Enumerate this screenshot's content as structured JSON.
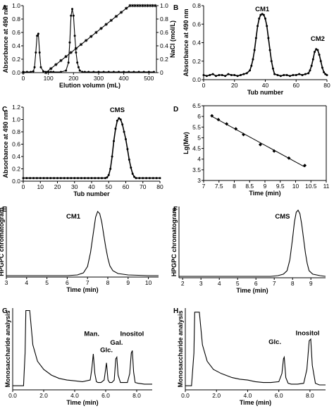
{
  "chart_data": [
    {
      "panel": "A",
      "type": "line",
      "xlabel": "Elution volumn (mL)",
      "ylabel": "Absorbance at 490 nm",
      "y2label": "NaCl (mol/L)",
      "xlim": [
        0,
        530
      ],
      "ylim": [
        0,
        1.0
      ],
      "y2lim": [
        0,
        1.0
      ],
      "xticks": [
        "0",
        "100",
        "200",
        "300",
        "400",
        "500"
      ],
      "yticks": [
        "0.0",
        "0.2",
        "0.4",
        "0.6",
        "0.8",
        "1.0"
      ],
      "y2ticks": [
        "0",
        "0.2",
        "0.4",
        "0.6",
        "0.8",
        "1.0"
      ],
      "series": [
        {
          "name": "",
          "axis": "left",
          "marker": "dot",
          "x": [
            0,
            15,
            30,
            40,
            45,
            50,
            55,
            60,
            65,
            70,
            80,
            90,
            100,
            110,
            120,
            150,
            170,
            180,
            185,
            190,
            195,
            200,
            205,
            210,
            215,
            220,
            225,
            235,
            245,
            260,
            280,
            300,
            320,
            340,
            360,
            380,
            400,
            420,
            440,
            460,
            480,
            500,
            520
          ],
          "y": [
            0.01,
            0.01,
            0.01,
            0.02,
            0.08,
            0.3,
            0.55,
            0.58,
            0.3,
            0.08,
            0.02,
            0.01,
            0.01,
            0.01,
            0.01,
            0.01,
            0.03,
            0.15,
            0.45,
            0.85,
            0.95,
            0.85,
            0.55,
            0.3,
            0.15,
            0.08,
            0.03,
            0.01,
            0.01,
            0.01,
            0.01,
            0.01,
            0.01,
            0.01,
            0.01,
            0.01,
            0.01,
            0.01,
            0.01,
            0.01,
            0.01,
            0.01,
            0.01
          ]
        },
        {
          "name": "",
          "axis": "right",
          "marker": "star",
          "x": [
            0,
            90,
            110,
            130,
            150,
            170,
            190,
            210,
            230,
            250,
            270,
            290,
            310,
            330,
            350,
            370,
            390,
            410,
            425,
            435,
            445,
            455,
            465,
            475,
            485,
            495,
            505,
            515,
            525
          ],
          "y": [
            0,
            0,
            0.06,
            0.12,
            0.18,
            0.24,
            0.3,
            0.36,
            0.42,
            0.48,
            0.54,
            0.6,
            0.66,
            0.72,
            0.78,
            0.84,
            0.9,
            0.96,
            1,
            1,
            1,
            1,
            1,
            1,
            1,
            1,
            1,
            1,
            1
          ]
        }
      ]
    },
    {
      "panel": "B",
      "type": "line",
      "xlabel": "Tub number",
      "ylabel": "Absorbance at 490 nm",
      "xlim": [
        0,
        80
      ],
      "ylim": [
        0,
        0.8
      ],
      "xticks": [
        "0",
        "20",
        "40",
        "60",
        "80"
      ],
      "yticks": [
        "0.0",
        "0.2",
        "0.4",
        "0.6",
        "0.8"
      ],
      "annotations": [
        {
          "text": "CM1",
          "x": 38,
          "y": 0.74
        },
        {
          "text": "CM2",
          "x": 74,
          "y": 0.42
        }
      ],
      "series": [
        {
          "name": "",
          "marker": "dot",
          "x": [
            0,
            2,
            4,
            6,
            8,
            10,
            12,
            14,
            16,
            18,
            20,
            22,
            24,
            26,
            28,
            30,
            31,
            32,
            33,
            34,
            35,
            36,
            37,
            38,
            39,
            40,
            41,
            42,
            43,
            44,
            45,
            46,
            48,
            50,
            52,
            54,
            56,
            58,
            60,
            62,
            64,
            66,
            68,
            69,
            70,
            71,
            72,
            73,
            74,
            75,
            76,
            77,
            78,
            79,
            80
          ],
          "y": [
            0.05,
            0.04,
            0.05,
            0.06,
            0.04,
            0.05,
            0.05,
            0.04,
            0.06,
            0.05,
            0.05,
            0.04,
            0.05,
            0.06,
            0.07,
            0.1,
            0.15,
            0.22,
            0.32,
            0.45,
            0.58,
            0.66,
            0.7,
            0.71,
            0.7,
            0.66,
            0.58,
            0.45,
            0.32,
            0.2,
            0.12,
            0.06,
            0.05,
            0.04,
            0.05,
            0.05,
            0.04,
            0.05,
            0.05,
            0.06,
            0.05,
            0.06,
            0.07,
            0.1,
            0.15,
            0.22,
            0.3,
            0.33,
            0.32,
            0.27,
            0.2,
            0.13,
            0.08,
            0.06,
            0.05
          ]
        }
      ]
    },
    {
      "panel": "C",
      "type": "line",
      "xlabel": "Tub number",
      "ylabel": "Absorbance at 490 nm",
      "xlim": [
        0,
        80
      ],
      "ylim": [
        0,
        1.2
      ],
      "xticks": [
        "0",
        "10",
        "20",
        "30",
        "40",
        "50",
        "60",
        "70",
        "80"
      ],
      "yticks": [
        "0.0",
        "0.2",
        "0.4",
        "0.6",
        "0.8",
        "1.0",
        "1.2"
      ],
      "annotations": [
        {
          "text": "CMS",
          "x": 55,
          "y": 1.12
        }
      ],
      "series": [
        {
          "name": "",
          "marker": "dot",
          "x": [
            0,
            2,
            4,
            6,
            8,
            10,
            12,
            14,
            16,
            18,
            20,
            22,
            24,
            26,
            28,
            30,
            32,
            34,
            36,
            38,
            40,
            42,
            44,
            46,
            48,
            49,
            50,
            51,
            52,
            53,
            54,
            55,
            56,
            57,
            58,
            59,
            60,
            61,
            62,
            63,
            64,
            65,
            66,
            68,
            70,
            72,
            74,
            76,
            78,
            80
          ],
          "y": [
            0.05,
            0.05,
            0.05,
            0.05,
            0.05,
            0.05,
            0.05,
            0.05,
            0.05,
            0.05,
            0.05,
            0.05,
            0.05,
            0.05,
            0.05,
            0.05,
            0.05,
            0.05,
            0.05,
            0.05,
            0.05,
            0.05,
            0.05,
            0.05,
            0.05,
            0.06,
            0.1,
            0.2,
            0.4,
            0.65,
            0.85,
            0.98,
            1.02,
            1.0,
            0.92,
            0.8,
            0.68,
            0.52,
            0.35,
            0.22,
            0.12,
            0.07,
            0.05,
            0.05,
            0.05,
            0.05,
            0.05,
            0.05,
            0.05,
            0.05
          ]
        }
      ]
    },
    {
      "panel": "D",
      "type": "scatter",
      "xlabel": "Time (min)",
      "ylabel": "Lg(Mw)",
      "xlim": [
        7,
        11
      ],
      "ylim": [
        3,
        6.5
      ],
      "xticks": [
        "7",
        "7.5",
        "8",
        "8.5",
        "9",
        "9.5",
        "10",
        "10.5",
        "11"
      ],
      "yticks": [
        "3",
        "3.5",
        "4",
        "4.5",
        "5",
        "5.5",
        "6",
        "6.5"
      ],
      "series": [
        {
          "name": "",
          "marker": "diamond",
          "fit": "linear",
          "x": [
            7.27,
            7.48,
            7.75,
            8.05,
            8.3,
            8.85,
            9.3,
            9.78,
            10.3
          ],
          "y": [
            6.03,
            5.85,
            5.65,
            5.42,
            5.15,
            4.68,
            4.38,
            4.05,
            3.7
          ]
        }
      ]
    },
    {
      "panel": "E",
      "type": "line",
      "xlabel": "Time (min)",
      "ylabel": "HPGPC chromatogram",
      "xlim": [
        3,
        10.5
      ],
      "ylim": [
        0,
        1
      ],
      "xticks": [
        "3",
        "4",
        "5",
        "6",
        "7",
        "8",
        "9",
        "10"
      ],
      "annotations": [
        {
          "text": "CM1",
          "x": 6.3,
          "y": 0.83
        }
      ],
      "series": [
        {
          "name": "",
          "x": [
            3,
            4,
            5,
            6,
            6.5,
            6.8,
            7,
            7.15,
            7.3,
            7.4,
            7.5,
            7.6,
            7.7,
            7.8,
            7.9,
            8,
            8.1,
            8.25,
            8.5,
            9,
            10,
            10.5
          ],
          "y": [
            0.02,
            0.02,
            0.02,
            0.02,
            0.03,
            0.06,
            0.15,
            0.35,
            0.65,
            0.85,
            0.93,
            0.9,
            0.78,
            0.6,
            0.42,
            0.27,
            0.16,
            0.09,
            0.05,
            0.03,
            0.02,
            0.02
          ]
        }
      ]
    },
    {
      "panel": "F",
      "type": "line",
      "xlabel": "Time (min)",
      "ylabel": "HPGPC chromatogram",
      "xlim": [
        1.8,
        9.8
      ],
      "ylim": [
        0,
        1
      ],
      "xticks": [
        "2",
        "3",
        "4",
        "5",
        "6",
        "7",
        "8",
        "9"
      ],
      "annotations": [
        {
          "text": "CMS",
          "x": 7.45,
          "y": 0.83
        }
      ],
      "series": [
        {
          "name": "",
          "x": [
            1.8,
            3,
            4,
            5,
            6,
            6.8,
            7.2,
            7.5,
            7.7,
            7.85,
            8,
            8.1,
            8.2,
            8.3,
            8.4,
            8.5,
            8.6,
            8.7,
            8.8,
            8.9,
            9.1,
            9.5,
            9.8
          ],
          "y": [
            0.02,
            0.02,
            0.02,
            0.02,
            0.02,
            0.02,
            0.03,
            0.05,
            0.1,
            0.25,
            0.55,
            0.78,
            0.92,
            0.95,
            0.9,
            0.75,
            0.55,
            0.35,
            0.2,
            0.1,
            0.05,
            0.03,
            0.02
          ]
        }
      ]
    },
    {
      "panel": "G",
      "type": "line",
      "xlabel": "Time (min)",
      "ylabel": "Monosaccharide analysis",
      "xlim": [
        0,
        9
      ],
      "ylim": [
        0,
        1
      ],
      "xticks": [
        "0.0",
        "2.0",
        "4.0",
        "6.0",
        "8.0"
      ],
      "annotations": [
        {
          "text": "Man.",
          "x": 5.1,
          "y": 0.66
        },
        {
          "text": "Glc.",
          "x": 6.05,
          "y": 0.46
        },
        {
          "text": "Gal.",
          "x": 6.7,
          "y": 0.55
        },
        {
          "text": "Inositol",
          "x": 7.7,
          "y": 0.66
        }
      ],
      "series": [
        {
          "name": "",
          "x": [
            0,
            0.7,
            0.8,
            0.85,
            1.1,
            1.3,
            1.6,
            2,
            2.5,
            3,
            3.5,
            4,
            4.5,
            5,
            5.1,
            5.2,
            5.3,
            5.4,
            5.5,
            5.7,
            5.9,
            6.05,
            6.15,
            6.25,
            6.4,
            6.55,
            6.65,
            6.72,
            6.8,
            6.95,
            7.2,
            7.4,
            7.55,
            7.65,
            7.72,
            7.8,
            7.9,
            8.1,
            8.5,
            9
          ],
          "y": [
            0.05,
            0.05,
            0.45,
            0.97,
            0.97,
            0.55,
            0.35,
            0.25,
            0.18,
            0.14,
            0.12,
            0.11,
            0.1,
            0.12,
            0.25,
            0.44,
            0.2,
            0.1,
            0.09,
            0.09,
            0.12,
            0.33,
            0.12,
            0.09,
            0.09,
            0.12,
            0.38,
            0.4,
            0.18,
            0.09,
            0.09,
            0.09,
            0.2,
            0.45,
            0.48,
            0.22,
            0.09,
            0.08,
            0.07,
            0.07
          ]
        }
      ]
    },
    {
      "panel": "H",
      "type": "line",
      "xlabel": "Time (min)",
      "ylabel": "Monosaccharide analysis",
      "xlim": [
        0,
        9
      ],
      "ylim": [
        0,
        1
      ],
      "xticks": [
        "0.0",
        "2.0",
        "4.0",
        "6.0",
        "8.0"
      ],
      "annotations": [
        {
          "text": "Glc.",
          "x": 5.75,
          "y": 0.56
        },
        {
          "text": "Inositol",
          "x": 7.85,
          "y": 0.67
        }
      ],
      "series": [
        {
          "name": "",
          "x": [
            0,
            0.4,
            0.55,
            0.6,
            0.9,
            1.1,
            1.4,
            1.8,
            2.3,
            3,
            3.5,
            4,
            4.5,
            5,
            5.5,
            6,
            6.2,
            6.3,
            6.35,
            6.45,
            6.6,
            6.8,
            7.2,
            7.6,
            7.8,
            7.95,
            8.05,
            8.15,
            8.35,
            8.6,
            9
          ],
          "y": [
            0.05,
            0.05,
            0.45,
            0.95,
            0.95,
            0.55,
            0.35,
            0.25,
            0.2,
            0.15,
            0.13,
            0.12,
            0.1,
            0.09,
            0.09,
            0.1,
            0.2,
            0.38,
            0.4,
            0.15,
            0.08,
            0.07,
            0.07,
            0.08,
            0.25,
            0.6,
            0.62,
            0.3,
            0.08,
            0.06,
            0.06
          ]
        }
      ]
    }
  ]
}
